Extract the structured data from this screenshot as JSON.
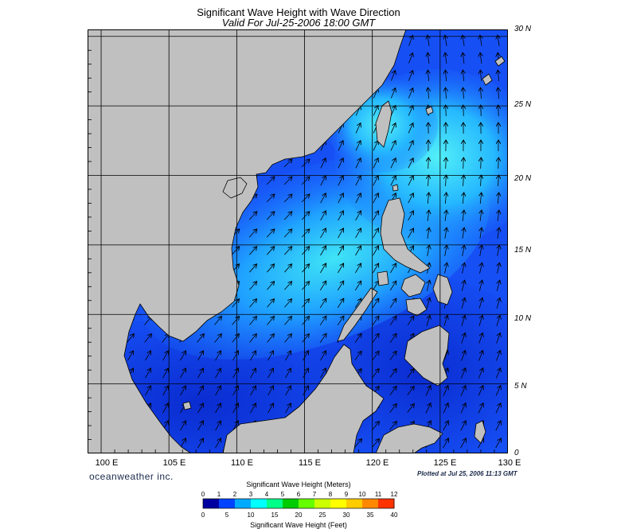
{
  "header": {
    "title": "Significant Wave Height with Wave Direction",
    "subtitle": "Valid For Jul-25-2006 18:00 GMT"
  },
  "axes": {
    "lat_labels": [
      "30 N",
      "25 N",
      "20 N",
      "15 N",
      "10 N",
      "5 N",
      "0"
    ],
    "lat_values": [
      30,
      25,
      20,
      15,
      10,
      5,
      0
    ],
    "lon_labels": [
      "100 E",
      "105 E",
      "110 E",
      "115 E",
      "120 E",
      "125 E",
      "130 E"
    ],
    "lon_values": [
      100,
      105,
      110,
      115,
      120,
      125,
      130
    ],
    "lon_range": [
      99,
      130
    ],
    "lat_range": [
      0,
      30.5
    ]
  },
  "footer": {
    "brand": "oceanweather inc.",
    "plotted": "Plotted at Jul 25, 2006 11:13 GMT"
  },
  "legend": {
    "title_meters": "Significant Wave Height (Meters)",
    "title_feet": "Significant Wave Height (Feet)",
    "meters_ticks": [
      "0",
      "1",
      "2",
      "3",
      "4",
      "5",
      "6",
      "7",
      "8",
      "9",
      "10",
      "11",
      "12"
    ],
    "feet_ticks": [
      "0",
      "5",
      "10",
      "15",
      "20",
      "25",
      "30",
      "35",
      "40"
    ],
    "colors": [
      "#0000a0",
      "#0044ff",
      "#00aaff",
      "#00ffff",
      "#00ff88",
      "#00cc00",
      "#66ff00",
      "#ccff00",
      "#ffff00",
      "#ffcc00",
      "#ff8800",
      "#ff3300"
    ]
  },
  "colors": {
    "land": "#c0c0c0",
    "sea_low": "#0a2fd6",
    "sea_mid": "#1e6bff",
    "sea_high": "#22aaff",
    "sea_peak": "#40e0f0",
    "grid": "#000000"
  }
}
